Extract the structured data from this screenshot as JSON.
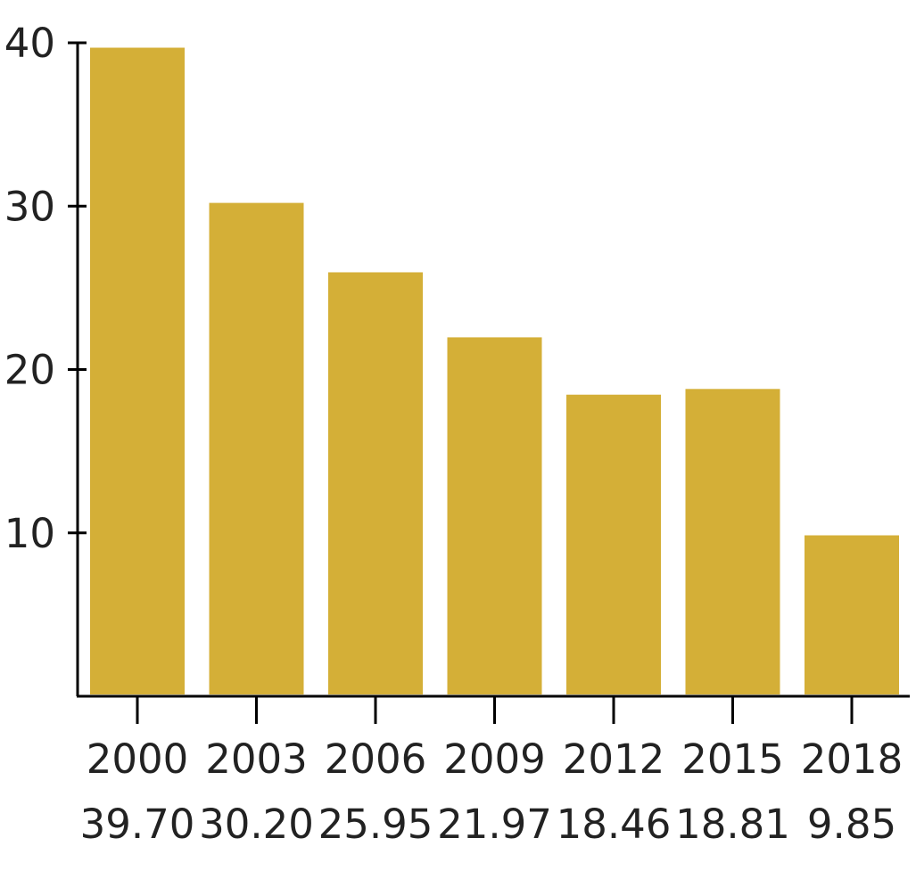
{
  "chart_data": {
    "type": "bar",
    "categories": [
      "2000",
      "2003",
      "2006",
      "2009",
      "2012",
      "2015",
      "2018"
    ],
    "values": [
      39.7,
      30.2,
      25.95,
      21.97,
      18.46,
      18.81,
      9.85
    ],
    "value_labels": [
      "39.70",
      "30.20",
      "25.95",
      "21.97",
      "18.46",
      "18.81",
      "9.85"
    ],
    "title": "",
    "xlabel": "",
    "ylabel": "",
    "ylim": [
      0,
      40
    ],
    "yticks": [
      10,
      20,
      30,
      40
    ],
    "grid": false,
    "bar_color": "#d4af37"
  }
}
